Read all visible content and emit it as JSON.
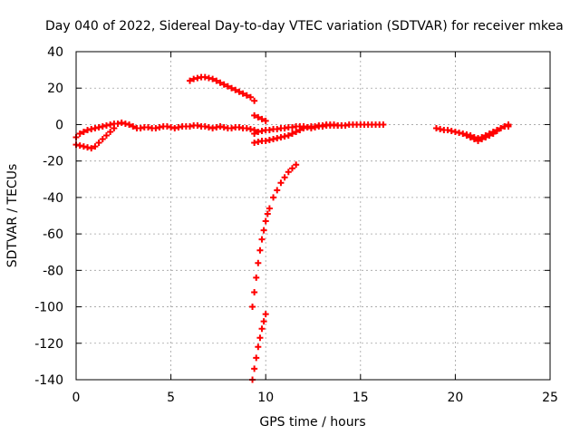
{
  "chart_data": {
    "type": "scatter",
    "title": "Day 040 of 2022, Sidereal Day-to-day VTEC variation (SDTVAR) for receiver mkea",
    "xlabel": "GPS time / hours",
    "ylabel": "SDTVAR / TECUs",
    "xlim": [
      0,
      25
    ],
    "ylim": [
      -140,
      40
    ],
    "x_ticks": [
      "0",
      "5",
      "10",
      "15",
      "20",
      "25"
    ],
    "y_ticks": [
      "40",
      "20",
      "0",
      "-20",
      "-40",
      "-60",
      "-80",
      "-100",
      "-120",
      "-140"
    ],
    "grid": true,
    "marker": "plus",
    "color": "#ff0000",
    "series": [
      {
        "x": [
          0.0,
          0.2,
          0.4,
          0.6,
          0.8,
          1.0,
          1.2,
          1.4,
          1.6,
          1.8,
          2.0,
          2.2,
          2.4,
          2.6,
          2.8,
          3.0,
          3.2,
          3.4,
          3.6,
          3.8,
          4.0,
          4.2,
          4.4,
          4.6,
          4.8,
          5.0,
          5.2,
          5.4,
          5.6,
          5.8,
          6.0,
          6.2,
          6.4,
          6.6,
          6.8,
          7.0,
          7.2,
          7.4,
          7.6,
          7.8,
          8.0,
          8.2,
          8.4,
          8.6,
          8.8,
          9.0,
          9.2,
          9.4
        ],
        "y": [
          -7,
          -5,
          -4,
          -3,
          -2.5,
          -2,
          -1.5,
          -1,
          -0.5,
          0,
          0.5,
          0.5,
          1,
          0.5,
          0,
          -1,
          -2,
          -2,
          -1.5,
          -1.5,
          -2,
          -2,
          -1.5,
          -1,
          -1,
          -1.5,
          -2,
          -1.5,
          -1,
          -1,
          -1,
          -0.5,
          -0.5,
          -1,
          -1,
          -1.5,
          -2,
          -1.5,
          -1,
          -1.5,
          -2,
          -2,
          -1.5,
          -1.5,
          -2,
          -2,
          -2.5,
          -3
        ]
      },
      {
        "x": [
          0.0,
          0.2,
          0.4,
          0.6,
          0.8,
          1.0,
          1.2,
          1.4,
          1.6,
          1.8,
          2.0
        ],
        "y": [
          -11,
          -11.5,
          -12,
          -12.5,
          -13,
          -12,
          -10,
          -8,
          -6,
          -4,
          -2
        ]
      },
      {
        "x": [
          6.0,
          6.2,
          6.4,
          6.6,
          6.8,
          7.0,
          7.2,
          7.4,
          7.6,
          7.8,
          8.0,
          8.2,
          8.4,
          8.6,
          8.8,
          9.0,
          9.2,
          9.4
        ],
        "y": [
          24,
          25,
          25.5,
          26,
          26,
          25.5,
          25,
          24,
          23,
          22,
          21,
          20,
          19,
          18,
          17,
          16,
          15,
          13
        ]
      },
      {
        "x": [
          9.4,
          9.6,
          9.8,
          10.0
        ],
        "y": [
          5,
          4,
          3,
          2
        ]
      },
      {
        "x": [
          9.4,
          9.6,
          9.8,
          10.0,
          10.2,
          10.4,
          10.6,
          10.8,
          11.0,
          11.2,
          11.4,
          11.6,
          11.8,
          12.0,
          12.2,
          12.4,
          12.6,
          12.8,
          13.0,
          13.2,
          13.4,
          13.6,
          13.8,
          14.0,
          14.2,
          14.4,
          14.6,
          14.8,
          15.0,
          15.2,
          15.4,
          15.6,
          15.8,
          16.0,
          16.2
        ],
        "y": [
          -10,
          -9.5,
          -9,
          -9,
          -8.5,
          -8,
          -7.5,
          -7,
          -6.5,
          -6,
          -5,
          -4,
          -3,
          -2,
          -1.5,
          -1,
          -1,
          -0.5,
          -0.5,
          0,
          0,
          0,
          -0.5,
          -0.5,
          -0.5,
          0,
          0,
          0,
          0,
          0,
          0,
          0,
          0,
          0,
          0
        ]
      },
      {
        "x": [
          9.4,
          9.6,
          9.8,
          10.0,
          10.2,
          10.4,
          10.6,
          10.8,
          11.0,
          11.2,
          11.4,
          11.6,
          11.8,
          12.0,
          12.2,
          12.4,
          12.6,
          12.8,
          13.0,
          13.2,
          13.4,
          13.6,
          13.8,
          14.0
        ],
        "y": [
          -5,
          -4,
          -3.5,
          -3,
          -3,
          -2.5,
          -2.5,
          -2,
          -2,
          -1.5,
          -1.5,
          -1,
          -1,
          -1,
          -1.5,
          -2,
          -1.5,
          -1,
          -1,
          -0.5,
          -0.5,
          -0.5,
          -0.5,
          -0.5
        ]
      },
      {
        "x": [
          9.3,
          9.4,
          9.5,
          9.6,
          9.7,
          9.8,
          9.9,
          10.0,
          10.1,
          10.2,
          10.4,
          10.6,
          10.8,
          11.0,
          11.2,
          11.4,
          11.6
        ],
        "y": [
          -100,
          -92,
          -84,
          -76,
          -69,
          -63,
          -58,
          -53,
          -49,
          -46,
          -40,
          -36,
          -32,
          -29,
          -26,
          -24,
          -22
        ]
      },
      {
        "x": [
          9.3,
          9.4,
          9.5,
          9.6,
          9.7,
          9.8,
          9.9,
          10.0
        ],
        "y": [
          -140,
          -134,
          -128,
          -122,
          -117,
          -112,
          -108,
          -104
        ]
      },
      {
        "x": [
          19.0,
          19.2,
          19.4,
          19.6,
          19.8,
          20.0,
          20.2,
          20.4,
          20.6,
          20.8,
          21.0,
          21.2,
          21.4,
          21.6,
          21.8,
          22.0,
          22.2,
          22.4,
          22.6,
          22.8
        ],
        "y": [
          -2,
          -2.5,
          -3,
          -3,
          -3.5,
          -4,
          -4.5,
          -5,
          -5.5,
          -6,
          -7,
          -7.5,
          -7,
          -6,
          -5,
          -4,
          -3,
          -2,
          -1,
          -1
        ]
      },
      {
        "x": [
          20.6,
          20.8,
          21.0,
          21.2,
          21.4,
          21.6,
          21.8,
          22.0,
          22.2,
          22.4,
          22.6,
          22.8
        ],
        "y": [
          -6,
          -7,
          -8,
          -9,
          -8,
          -7,
          -6,
          -5,
          -3.5,
          -2,
          -1,
          0
        ]
      }
    ]
  }
}
